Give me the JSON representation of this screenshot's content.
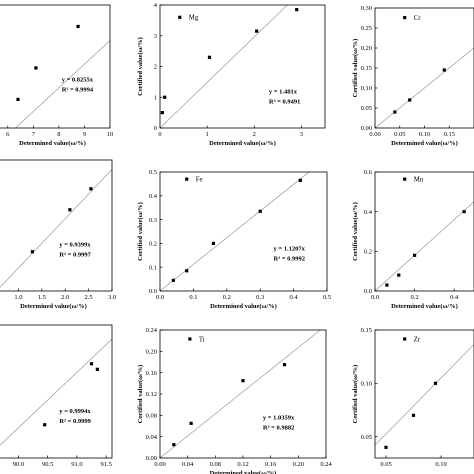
{
  "chart_data": [
    {
      "type": "scatter",
      "legend": "",
      "xlabel": "Determined value(ω/%)",
      "ylabel": "",
      "xlim": [
        5.5,
        10
      ],
      "ylim": [
        5.2,
        9.5
      ],
      "xticks": [
        "6",
        "7",
        "8",
        "9",
        "10"
      ],
      "yticks": [],
      "points": [
        [
          6.4,
          6.2
        ],
        [
          7.1,
          7.3
        ],
        [
          8.75,
          8.75
        ]
      ],
      "fit_slope": 0.8255,
      "equation": "y = 0.8255x",
      "r2": "R² = 0.9994"
    },
    {
      "type": "scatter",
      "legend": "Mg",
      "xlabel": "Determined value(ω/%)",
      "ylabel": "Certified value(ω/%)",
      "xlim": [
        0,
        3.5
      ],
      "ylim": [
        0,
        4
      ],
      "xticks": [
        "0",
        "1",
        "2",
        "3"
      ],
      "yticks": [
        "0",
        "1",
        "2",
        "3",
        "4"
      ],
      "points": [
        [
          0.05,
          0.5
        ],
        [
          0.1,
          1.0
        ],
        [
          1.05,
          2.3
        ],
        [
          2.05,
          3.15
        ],
        [
          2.9,
          3.85
        ]
      ],
      "fit_slope": 1.481,
      "equation": "y = 1.481x",
      "r2": "R² = 0.9491"
    },
    {
      "type": "scatter",
      "legend": "Cr",
      "xlabel": "Determined value(ω/%)",
      "ylabel": "Certified value(ω/%)",
      "xlim": [
        0,
        0.2
      ],
      "ylim": [
        0,
        0.3
      ],
      "xticks": [
        "0.00",
        "0.05",
        "0.10",
        "0.15"
      ],
      "yticks": [
        "0.00",
        "0.05",
        "0.10",
        "0.15",
        "0.20",
        "0.25",
        "0.30"
      ],
      "points": [
        [
          0.04,
          0.04
        ],
        [
          0.07,
          0.07
        ],
        [
          0.14,
          0.145
        ]
      ],
      "fit_slope": 1.0,
      "equation": "",
      "r2": ""
    },
    {
      "type": "scatter",
      "legend": "",
      "xlabel": "Determined value(ω/%)",
      "ylabel": "",
      "xlim": [
        0.5,
        3.0
      ],
      "ylim": [
        0.5,
        3.0
      ],
      "xticks": [
        "1.0",
        "1.5",
        "2.0",
        "2.5",
        "3.0"
      ],
      "yticks": [],
      "points": [
        [
          1.3,
          1.25
        ],
        [
          2.1,
          2.05
        ],
        [
          2.55,
          2.45
        ]
      ],
      "fit_slope": 0.9399,
      "equation": "y = 0.9399x",
      "r2": "R² = 0.9997"
    },
    {
      "type": "scatter",
      "legend": "Fe",
      "xlabel": "Determined value(ω/%)",
      "ylabel": "Certified value(ω/%)",
      "xlim": [
        0,
        0.5
      ],
      "ylim": [
        0,
        0.5
      ],
      "xticks": [
        "0.0",
        "0.1",
        "0.2",
        "0.3",
        "0.4",
        "0.5"
      ],
      "yticks": [
        "0.0",
        "0.1",
        "0.2",
        "0.3",
        "0.4",
        "0.5"
      ],
      "points": [
        [
          0.04,
          0.045
        ],
        [
          0.08,
          0.085
        ],
        [
          0.16,
          0.2
        ],
        [
          0.3,
          0.335
        ],
        [
          0.42,
          0.465
        ]
      ],
      "fit_slope": 1.1207,
      "equation": "y = 1.1207x",
      "r2": "R² = 0.9992"
    },
    {
      "type": "scatter",
      "legend": "Mn",
      "xlabel": "Determined value(ω/%)",
      "ylabel": "Certified value(ω/%)",
      "xlim": [
        0,
        0.5
      ],
      "ylim": [
        0,
        0.6
      ],
      "xticks": [
        "0.0",
        "0.2",
        "0.4"
      ],
      "yticks": [
        "0.0",
        "0.2",
        "0.4",
        "0.6"
      ],
      "points": [
        [
          0.06,
          0.03
        ],
        [
          0.12,
          0.08
        ],
        [
          0.2,
          0.18
        ],
        [
          0.45,
          0.4
        ]
      ],
      "fit_slope": 0.9,
      "equation": "",
      "r2": ""
    },
    {
      "type": "scatter",
      "legend": "",
      "xlabel": "",
      "ylabel": "",
      "xlim": [
        89.6,
        91.6
      ],
      "ylim": [
        89.4,
        91.8
      ],
      "xticks": [
        "90.0",
        "90.5",
        "91.0",
        "91.5"
      ],
      "yticks": [],
      "points": [
        [
          90.45,
          90.0
        ],
        [
          91.25,
          91.1
        ],
        [
          91.35,
          91.0
        ]
      ],
      "fit_slope": 0.9994,
      "equation": "y = 0.9994x",
      "r2": "R² = 0.9999"
    },
    {
      "type": "scatter",
      "legend": "Ti",
      "xlabel": "Determined value(ω/%)",
      "ylabel": "Certified value(ω/%)",
      "xlim": [
        0,
        0.24
      ],
      "ylim": [
        0,
        0.24
      ],
      "xticks": [
        "0.00",
        "0.04",
        "0.08",
        "0.12",
        "0.16",
        "0.20",
        "0.24"
      ],
      "yticks": [
        "0.00",
        "0.04",
        "0.08",
        "0.12",
        "0.16",
        "0.20",
        "0.24"
      ],
      "points": [
        [
          0.02,
          0.025
        ],
        [
          0.045,
          0.065
        ],
        [
          0.12,
          0.145
        ],
        [
          0.18,
          0.175
        ]
      ],
      "fit_slope": 1.0359,
      "equation": "y = 1.0359x",
      "r2": "R² = 0.9882"
    },
    {
      "type": "scatter",
      "legend": "Zr",
      "xlabel": "",
      "ylabel": "Certified value(ω/%)",
      "xlim": [
        0.04,
        0.13
      ],
      "ylim": [
        0.03,
        0.15
      ],
      "xticks": [
        "0.05",
        "0.10"
      ],
      "yticks": [
        "0.05",
        "0.10",
        "0.15"
      ],
      "points": [
        [
          0.05,
          0.04
        ],
        [
          0.075,
          0.07
        ],
        [
          0.095,
          0.1
        ]
      ],
      "fit_slope": 1.05,
      "equation": "",
      "r2": ""
    }
  ]
}
